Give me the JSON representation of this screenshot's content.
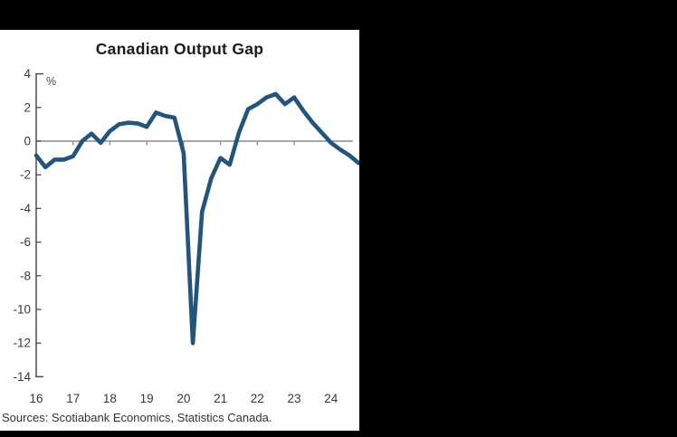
{
  "frame": {
    "background_color": "#000000",
    "panel_background_color": "#ffffff"
  },
  "header": {
    "title": "Canadian Output Gap"
  },
  "chart_data": {
    "type": "line",
    "title": "Canadian Output Gap",
    "unit_label": "%",
    "xlabel": "",
    "ylabel": "%",
    "ylim": [
      -14,
      4
    ],
    "y_ticks": [
      4,
      2,
      0,
      -2,
      -4,
      -6,
      -8,
      -10,
      -12,
      -14
    ],
    "x_tick_labels": [
      "16",
      "17",
      "18",
      "19",
      "20",
      "21",
      "22",
      "23",
      "24"
    ],
    "grid": false,
    "zero_line": true,
    "legend": "none",
    "quarters": [
      "2016Q1",
      "2016Q2",
      "2016Q3",
      "2016Q4",
      "2017Q1",
      "2017Q2",
      "2017Q3",
      "2017Q4",
      "2018Q1",
      "2018Q2",
      "2018Q3",
      "2018Q4",
      "2019Q1",
      "2019Q2",
      "2019Q3",
      "2019Q4",
      "2020Q1",
      "2020Q2",
      "2020Q3",
      "2020Q4",
      "2021Q1",
      "2021Q2",
      "2021Q3",
      "2021Q4",
      "2022Q1",
      "2022Q2",
      "2022Q3",
      "2022Q4",
      "2023Q1",
      "2023Q2",
      "2023Q3",
      "2023Q4",
      "2024Q1",
      "2024Q2",
      "2024Q3",
      "2024Q4"
    ],
    "series": [
      {
        "name": "Canadian output gap (%)",
        "values": [
          -0.85,
          -1.55,
          -1.1,
          -1.1,
          -0.9,
          0.0,
          0.45,
          -0.1,
          0.6,
          1.0,
          1.1,
          1.05,
          0.85,
          1.7,
          1.5,
          1.4,
          -0.7,
          -12.0,
          -4.2,
          -2.2,
          -1.0,
          -1.4,
          0.5,
          1.9,
          2.2,
          2.6,
          2.8,
          2.2,
          2.6,
          1.8,
          1.1,
          0.5,
          -0.1,
          -0.5,
          -0.85,
          -1.3
        ]
      }
    ],
    "colors": {
      "line": "#225480",
      "axis": "#4d4d4d",
      "zero_line": "#8a8a8a",
      "tick_label": "#383838"
    }
  },
  "footer": {
    "source_text": "Sources: Scotiabank Economics, Statistics Canada."
  }
}
